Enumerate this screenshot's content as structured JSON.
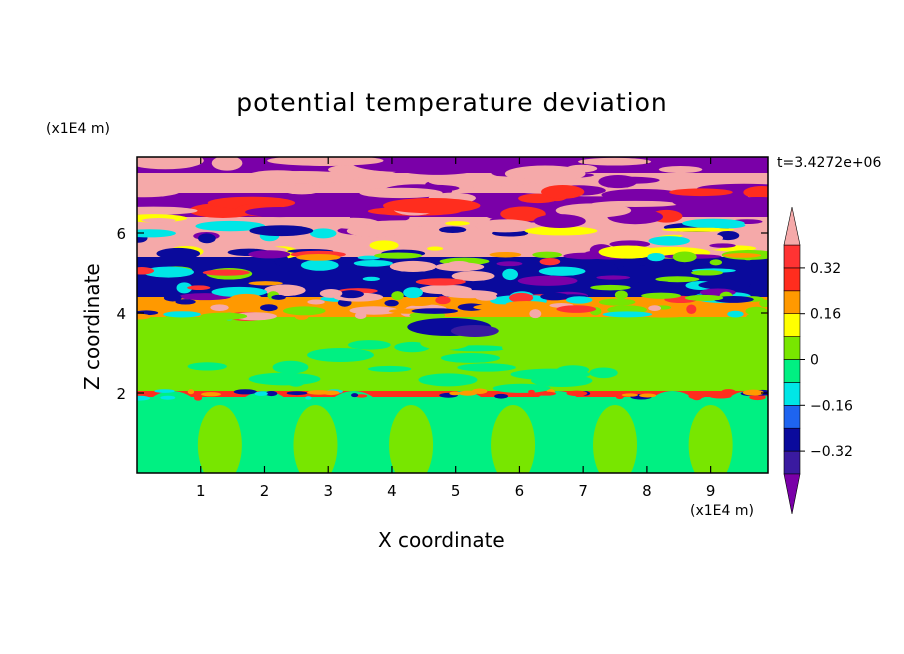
{
  "chart_data": {
    "type": "heatmap",
    "title": "potential temperature deviation",
    "xlabel": "X coordinate",
    "ylabel": "Z coordinate",
    "x_unit": "(x1E4 m)",
    "z_unit": "(x1E4 m)",
    "time_label": "t=3.4272e+06",
    "xlim": [
      0,
      9.9
    ],
    "ylim": [
      0,
      7.9
    ],
    "x_ticks": [
      1,
      2,
      3,
      4,
      5,
      6,
      7,
      8,
      9
    ],
    "y_ticks": [
      2,
      4,
      6
    ],
    "colorbar": {
      "levels": [
        -0.4,
        -0.32,
        -0.24,
        -0.16,
        -0.08,
        0,
        0.08,
        0.16,
        0.24,
        0.32,
        0.4
      ],
      "tick_labels": [
        "0.32",
        "0.16",
        "0",
        "−0.16",
        "−0.32"
      ],
      "tick_values": [
        0.32,
        0.16,
        0,
        -0.16,
        -0.32
      ],
      "colors": [
        "#7a00a8",
        "#3a1aa0",
        "#0a0a9c",
        "#1e64f0",
        "#00e6e6",
        "#00f082",
        "#78e600",
        "#ffff00",
        "#ff9900",
        "#ff2d1e",
        "#ff3333",
        "#f5a9a9"
      ],
      "extend": "both"
    },
    "bands": [
      {
        "z": [
          0.0,
          1.9
        ],
        "value": -0.05
      },
      {
        "z": [
          1.9,
          2.05
        ],
        "value": 0.3
      },
      {
        "z": [
          2.05,
          3.3
        ],
        "value": 0.02
      },
      {
        "z": [
          3.3,
          3.9
        ],
        "value": 0.04
      },
      {
        "z": [
          3.9,
          4.4
        ],
        "value": 0.18
      },
      {
        "z": [
          4.4,
          5.4
        ],
        "value": -0.3
      },
      {
        "z": [
          5.4,
          6.4
        ],
        "value": 0.45
      },
      {
        "z": [
          6.4,
          7.0
        ],
        "value": -0.45
      },
      {
        "z": [
          7.0,
          7.5
        ],
        "value": 0.45
      },
      {
        "z": [
          7.5,
          7.9
        ],
        "value": -0.45
      }
    ]
  }
}
